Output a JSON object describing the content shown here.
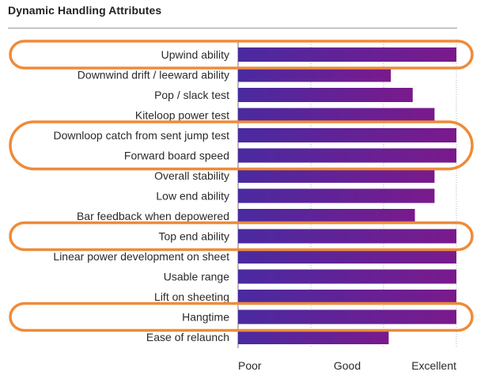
{
  "chart_data": {
    "type": "bar",
    "orientation": "horizontal",
    "title": "Dynamic Handling Attributes",
    "categories": [
      "Upwind ability",
      "Downwind drift / leeward ability",
      "Pop / slack test",
      "Kiteloop power test",
      "Downloop catch from sent jump test",
      "Forward board speed",
      "Overall stability",
      "Low end ability",
      "Bar feedback when depowered",
      "Top end ability",
      "Linear power development on sheet",
      "Usable range",
      "Lift on sheeting",
      "Hangtime",
      "Ease of relaunch"
    ],
    "values": [
      10.0,
      7.0,
      8.0,
      9.0,
      10.0,
      10.0,
      9.0,
      9.0,
      8.1,
      10.0,
      10.0,
      10.0,
      10.0,
      10.0,
      6.9
    ],
    "xlim": [
      0,
      10
    ],
    "x_ticks": [
      {
        "label": "Poor",
        "value": 0
      },
      {
        "label": "Good",
        "value": 5
      },
      {
        "label": "Excellent",
        "value": 10
      }
    ],
    "grid": true,
    "bar_gradient": [
      "#4a2aa0",
      "#7a1a8c"
    ],
    "highlight_color": "#ee8b3a",
    "highlighted": [
      [
        "Upwind ability"
      ],
      [
        "Downloop catch from sent jump test",
        "Forward board speed"
      ],
      [
        "Top end ability"
      ],
      [
        "Hangtime"
      ]
    ]
  }
}
